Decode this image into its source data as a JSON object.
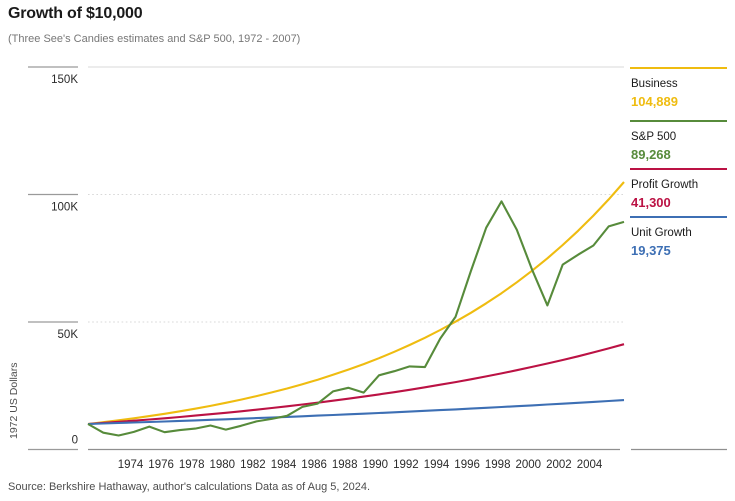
{
  "header": {
    "title": "Growth of $10,000",
    "subtitle": "(Three See's Candies estimates and S&P 500, 1972 - 2007)"
  },
  "source_note": "Source: Berkshire Hathaway, author's calculations Data as of Aug 5, 2024.",
  "legend": {
    "items": [
      {
        "label": "Business",
        "value": "104,889"
      },
      {
        "label": "S&P 500",
        "value": "89,268"
      },
      {
        "label": "Profit Growth",
        "value": "41,300"
      },
      {
        "label": "Unit Growth",
        "value": "19,375"
      }
    ]
  },
  "colors": {
    "gold": "#EFBC10",
    "green": "#578B3B",
    "crimson": "#BB1244",
    "blue": "#3D6FB4",
    "grid_light": "#d8d8d8",
    "axis": "#8f8f8f",
    "tick_line": "#9a9a9a",
    "tick_text": "#2b2b2b",
    "muted_text": "#4d4d4d"
  },
  "chart_data": {
    "type": "line",
    "title": "Growth of $10,000",
    "subtitle": "(Three See's Candies estimates and S&P 500, 1972 - 2007)",
    "xlabel": "",
    "ylabel": "1972 US Dollars",
    "ylim": [
      0,
      150000
    ],
    "ytick_values": [
      0,
      50000,
      100000,
      150000
    ],
    "ytick_labels": [
      "0",
      "50K",
      "100K",
      "150K"
    ],
    "xtick_years": [
      1974,
      1976,
      1978,
      1980,
      1982,
      1984,
      1986,
      1988,
      1990,
      1992,
      1994,
      1996,
      1998,
      2000,
      2002,
      2004
    ],
    "grid": "horizontal; solid at 150K, dotted at 50K and 100K, axis line at 0",
    "legend_position": "right",
    "x": [
      1972,
      1973,
      1974,
      1975,
      1976,
      1977,
      1978,
      1979,
      1980,
      1981,
      1982,
      1983,
      1984,
      1985,
      1986,
      1987,
      1988,
      1989,
      1990,
      1991,
      1992,
      1993,
      1994,
      1995,
      1996,
      1997,
      1998,
      1999,
      2000,
      2001,
      2002,
      2003,
      2004,
      2005,
      2006,
      2007
    ],
    "series": [
      {
        "name": "Business",
        "final_value": 104889,
        "final_label": "104,889",
        "color": "#EFBC10",
        "values": [
          10000,
          10695,
          11438,
          12232,
          13082,
          13990,
          14962,
          16001,
          17113,
          18301,
          19572,
          20932,
          22386,
          23941,
          25604,
          27382,
          29284,
          31318,
          33494,
          35820,
          38308,
          40969,
          43815,
          46858,
          50113,
          53594,
          57317,
          61298,
          65556,
          70110,
          74980,
          80188,
          85758,
          91715,
          98085,
          104889
        ]
      },
      {
        "name": "S&P 500",
        "final_value": 89268,
        "final_label": "89,268",
        "color": "#578B3B",
        "values": [
          10000,
          6600,
          5500,
          6900,
          9000,
          6800,
          7600,
          8200,
          9400,
          7800,
          9300,
          11000,
          12000,
          13200,
          16700,
          18000,
          22800,
          24200,
          22300,
          29100,
          30700,
          32600,
          32300,
          43500,
          52000,
          70000,
          87000,
          97300,
          86200,
          70500,
          56500,
          72500,
          76400,
          80000,
          87500,
          89268
        ]
      },
      {
        "name": "Profit Growth",
        "final_value": 41300,
        "final_label": "41,300",
        "color": "#BB1244",
        "values": [
          10000,
          10414,
          10844,
          11293,
          11760,
          12246,
          12752,
          13280,
          13829,
          14401,
          14996,
          15616,
          16262,
          16934,
          17634,
          18364,
          19123,
          19914,
          20737,
          21595,
          22488,
          23418,
          24386,
          25394,
          26444,
          27538,
          28676,
          29862,
          31097,
          32383,
          33722,
          35116,
          36568,
          38080,
          39655,
          41300
        ]
      },
      {
        "name": "Unit Growth",
        "final_value": 19375,
        "final_label": "19,375",
        "color": "#3D6FB4",
        "values": [
          10000,
          10191,
          10385,
          10583,
          10785,
          10991,
          11201,
          11415,
          11633,
          11855,
          12081,
          12312,
          12547,
          12786,
          13030,
          13279,
          13533,
          13791,
          14054,
          14323,
          14596,
          14875,
          15159,
          15448,
          15743,
          16044,
          16350,
          16662,
          16980,
          17304,
          17635,
          17971,
          18314,
          18664,
          19020,
          19375
        ]
      }
    ]
  }
}
